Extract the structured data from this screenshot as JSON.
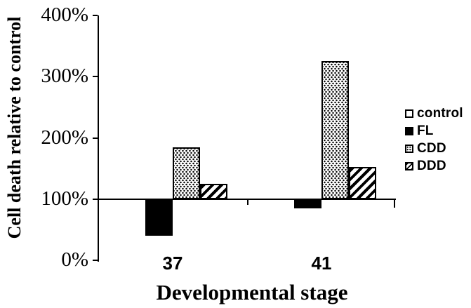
{
  "chart_data": {
    "type": "bar",
    "title": "",
    "xlabel": "Developmental stage",
    "ylabel": "Cell death relative to control",
    "categories": [
      "37",
      "41"
    ],
    "series": [
      {
        "name": "control",
        "fill": "white",
        "values": [
          100,
          100
        ]
      },
      {
        "name": "FL",
        "fill": "black",
        "values": [
          40,
          85
        ]
      },
      {
        "name": "CDD",
        "fill": "dots",
        "values": [
          185,
          325
        ]
      },
      {
        "name": "DDD",
        "fill": "diagonal",
        "values": [
          125,
          152
        ]
      }
    ],
    "bars_drawn_from_baseline": 100,
    "ylim": [
      0,
      400
    ],
    "yticks": [
      {
        "value": 0,
        "label": "0%"
      },
      {
        "value": 100,
        "label": "100%"
      },
      {
        "value": 200,
        "label": "200%"
      },
      {
        "value": 300,
        "label": "300%"
      },
      {
        "value": 400,
        "label": "400%"
      }
    ],
    "grid": false,
    "legend_position": "right",
    "legend": [
      "control",
      "FL",
      "CDD",
      "DDD"
    ],
    "colors": {
      "foreground": "#000000",
      "background": "#ffffff"
    }
  }
}
